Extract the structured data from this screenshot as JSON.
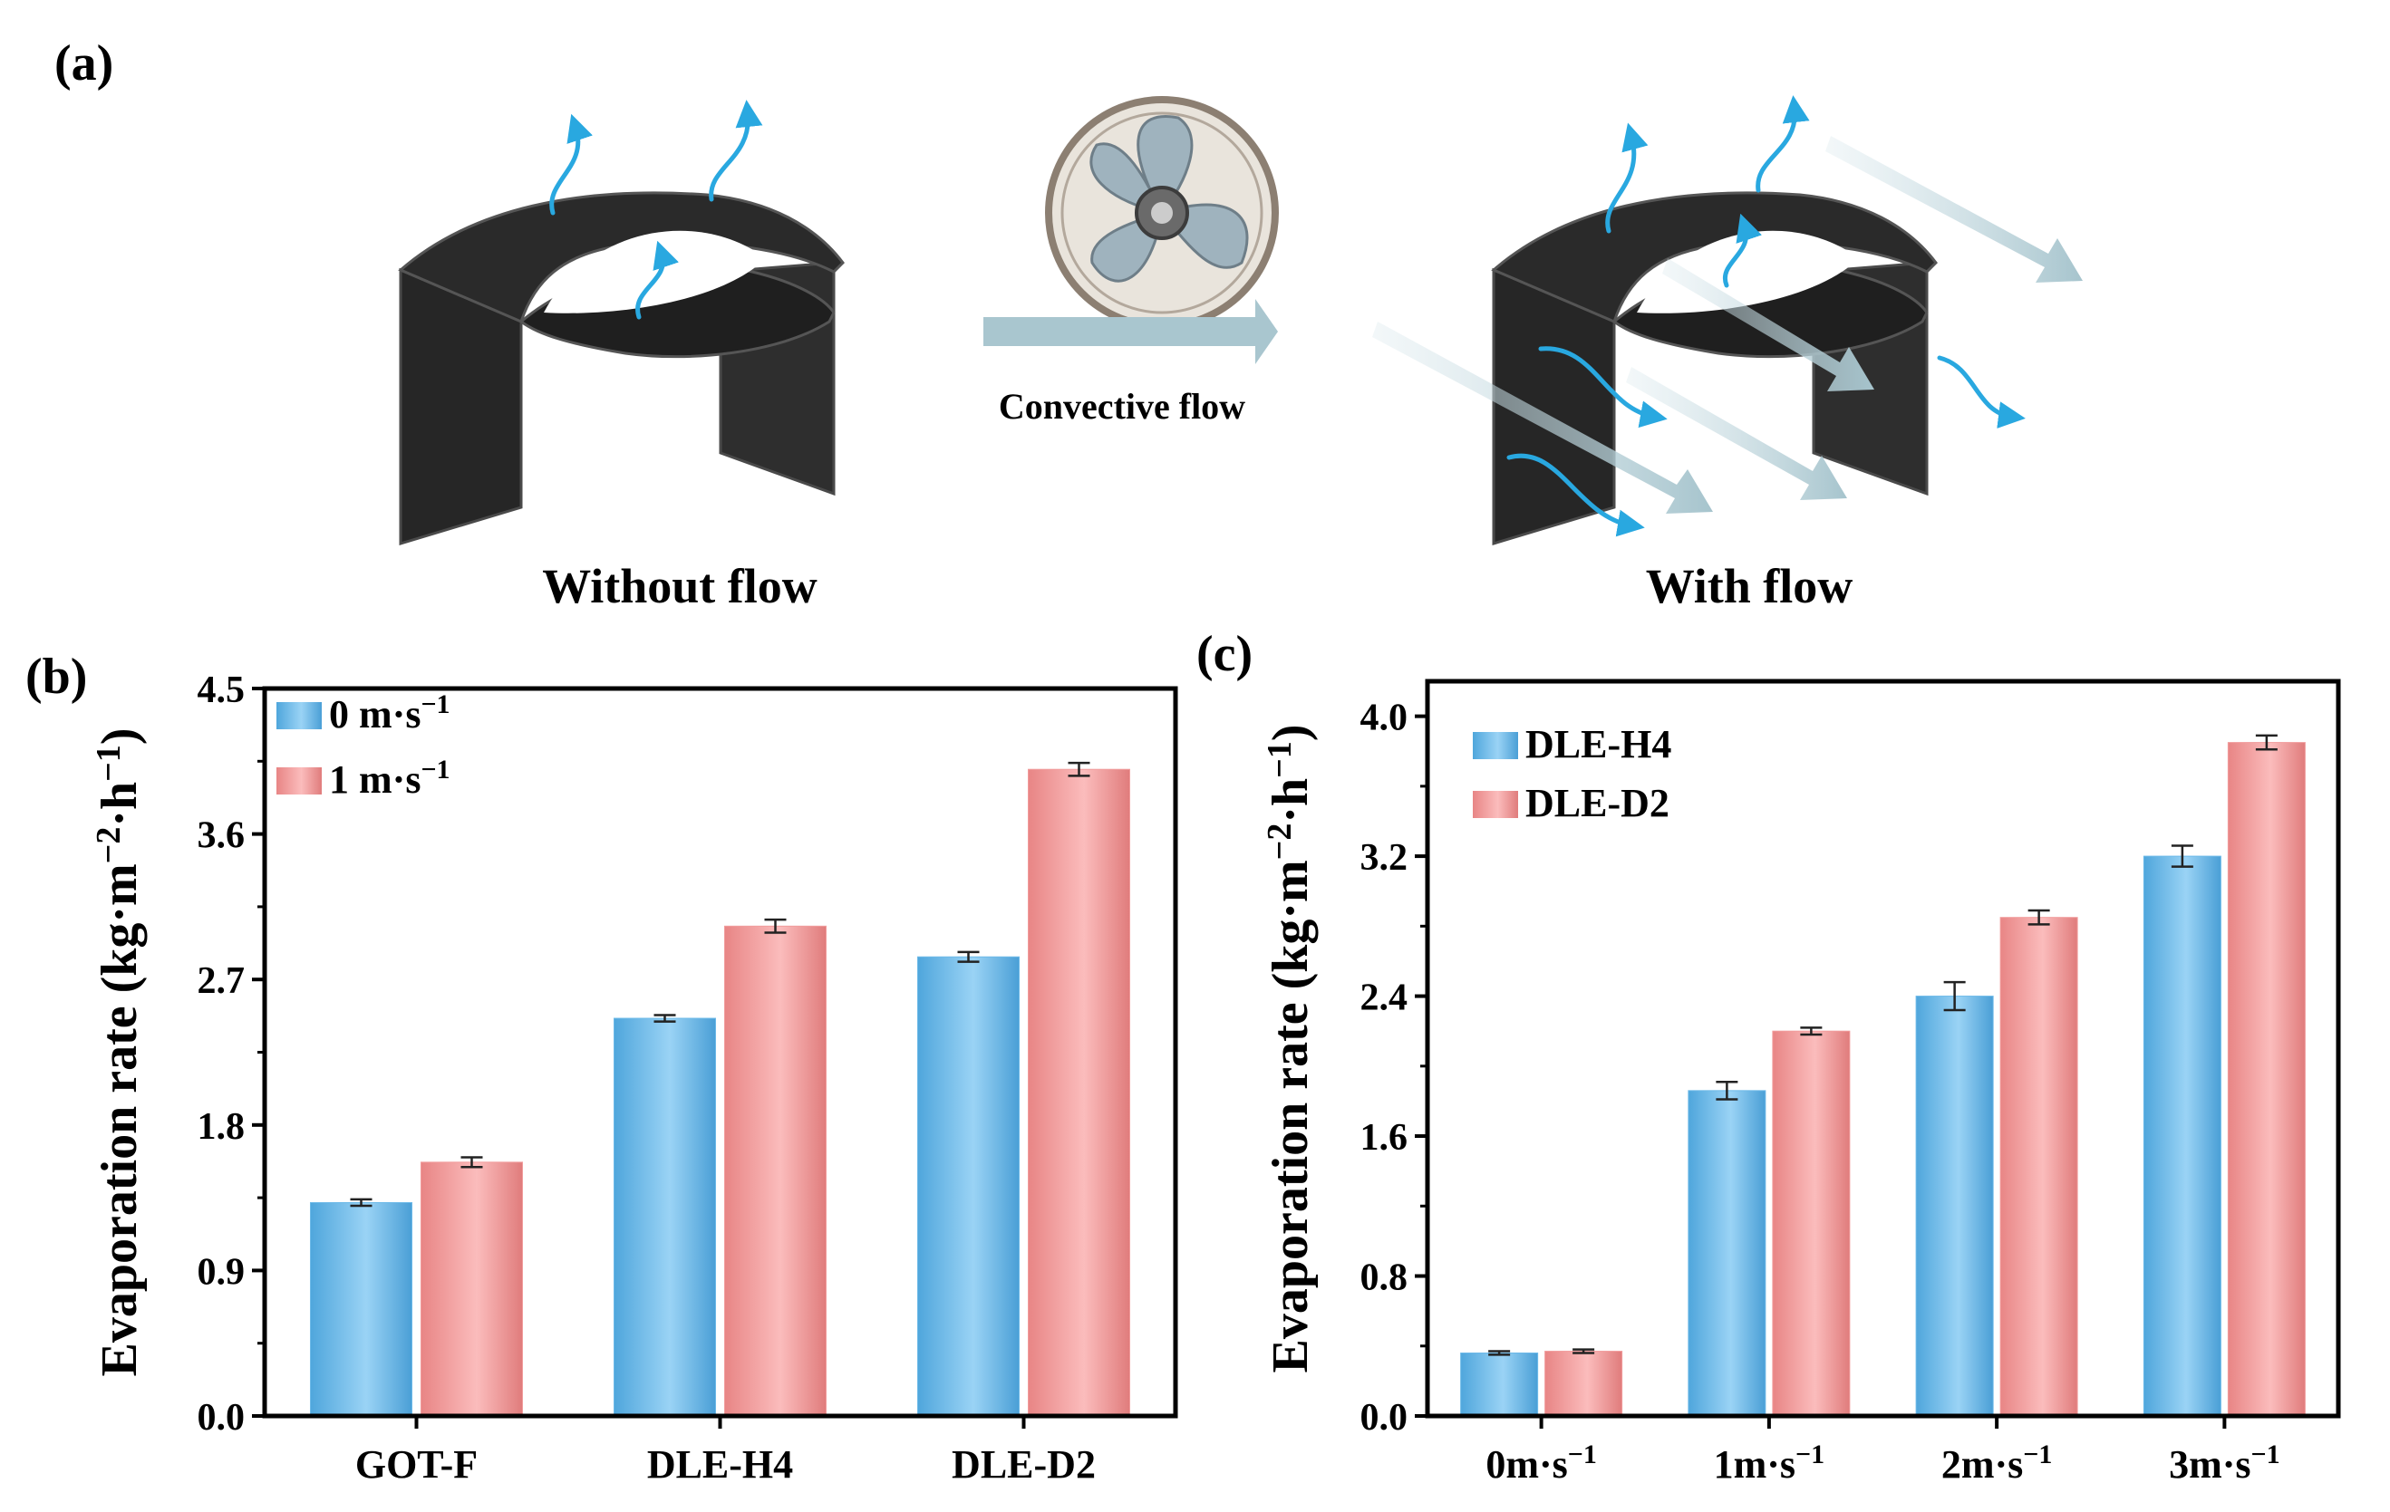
{
  "panel_a": {
    "label": "(a)",
    "left_caption": "Without flow",
    "right_caption": "With flow",
    "flow_caption": "Convective flow",
    "colors": {
      "device": "#2a2a2a",
      "vapor_arrow": "#29a8e0",
      "wind_arrow": "#a9c6cf"
    },
    "icons": [
      "evaporator-icon",
      "fan-icon",
      "wind-arrow-icon",
      "vapor-arrow-icon"
    ]
  },
  "chart_data": [
    {
      "panel_label": "(b)",
      "type": "bar",
      "ylabel_main": "Evaporation rate (kg·m",
      "ylabel_mid": "·h",
      "ylabel_sup1": "−2",
      "ylabel_sup2": "−1",
      "ylabel_close": ")",
      "categories": [
        "GOT-F",
        "DLE-H4",
        "DLE-D2"
      ],
      "ylim": [
        0,
        4.5
      ],
      "yticks": [
        "0.0",
        "0.9",
        "1.8",
        "2.7",
        "3.6",
        "4.5"
      ],
      "legend": [
        {
          "base": "0 m·s",
          "sup": "−1"
        },
        {
          "base": "1 m·s",
          "sup": "−1"
        }
      ],
      "series": [
        {
          "name": "0 m·s−1",
          "color": "#6cb9e8",
          "values": [
            1.32,
            2.46,
            2.84
          ],
          "errors": [
            0.02,
            0.02,
            0.03
          ]
        },
        {
          "name": "1 m·s−1",
          "color": "#f19c9c",
          "values": [
            1.57,
            3.03,
            4.0
          ],
          "errors": [
            0.03,
            0.04,
            0.04
          ]
        }
      ]
    },
    {
      "panel_label": "(c)",
      "type": "bar",
      "ylabel_main": "Evaporation rate (kg·m",
      "ylabel_mid": "·h",
      "ylabel_sup1": "−2",
      "ylabel_sup2": "−1",
      "ylabel_close": ")",
      "categories": [
        {
          "base": "0m·s",
          "sup": "−1"
        },
        {
          "base": "1m·s",
          "sup": "−1"
        },
        {
          "base": "2m·s",
          "sup": "−1"
        },
        {
          "base": "3m·s",
          "sup": "−1"
        }
      ],
      "ylim": [
        0,
        4.2
      ],
      "yticks": [
        "0.0",
        "0.8",
        "1.6",
        "2.4",
        "3.2",
        "4.0"
      ],
      "legend": [
        {
          "base": "DLE-H4",
          "sup": ""
        },
        {
          "base": "DLE-D2",
          "sup": ""
        }
      ],
      "series": [
        {
          "name": "DLE-H4",
          "color": "#6cb9e8",
          "values": [
            0.36,
            1.86,
            2.4,
            3.2
          ],
          "errors": [
            0.01,
            0.05,
            0.08,
            0.06
          ]
        },
        {
          "name": "DLE-D2",
          "color": "#f19c9c",
          "values": [
            0.37,
            2.2,
            2.85,
            3.85
          ],
          "errors": [
            0.01,
            0.02,
            0.04,
            0.04
          ]
        }
      ]
    }
  ]
}
